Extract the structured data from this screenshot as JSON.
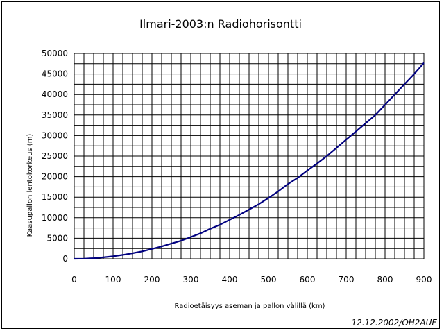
{
  "chart_data": {
    "type": "line",
    "title": "Ilmari-2003:n Radiohorisontti",
    "xlabel": "Radioetäisyys aseman ja pallon välillä (km)",
    "ylabel": "Kaasupallon lentokorkeus (m)",
    "xlim": [
      0,
      900
    ],
    "ylim": [
      0,
      50000
    ],
    "x_ticks": [
      "0",
      "100",
      "200",
      "300",
      "400",
      "500",
      "600",
      "700",
      "800",
      "900"
    ],
    "y_ticks": [
      "0",
      "5000",
      "10000",
      "15000",
      "20000",
      "25000",
      "30000",
      "35000",
      "40000",
      "45000",
      "50000"
    ],
    "grid": "vertical lines every 25 km, horizontal lines every 2500 m",
    "series": [
      {
        "color": "#000080",
        "x": [
          0,
          25,
          50,
          75,
          100,
          125,
          150,
          175,
          200,
          225,
          250,
          275,
          300,
          325,
          350,
          375,
          400,
          425,
          450,
          475,
          500,
          525,
          550,
          575,
          600,
          625,
          650,
          675,
          700,
          725,
          750,
          775,
          800,
          825,
          850,
          875,
          900
        ],
        "y": [
          0,
          40,
          150,
          350,
          600,
          950,
          1350,
          1800,
          2400,
          3000,
          3700,
          4400,
          5300,
          6200,
          7300,
          8300,
          9500,
          10700,
          12000,
          13300,
          14800,
          16400,
          18200,
          19700,
          21500,
          23200,
          25000,
          27000,
          29000,
          31000,
          33000,
          35000,
          37500,
          40000,
          42500,
          45000,
          47700
        ]
      }
    ]
  },
  "footer": "12.12.2002/OH2AUE"
}
